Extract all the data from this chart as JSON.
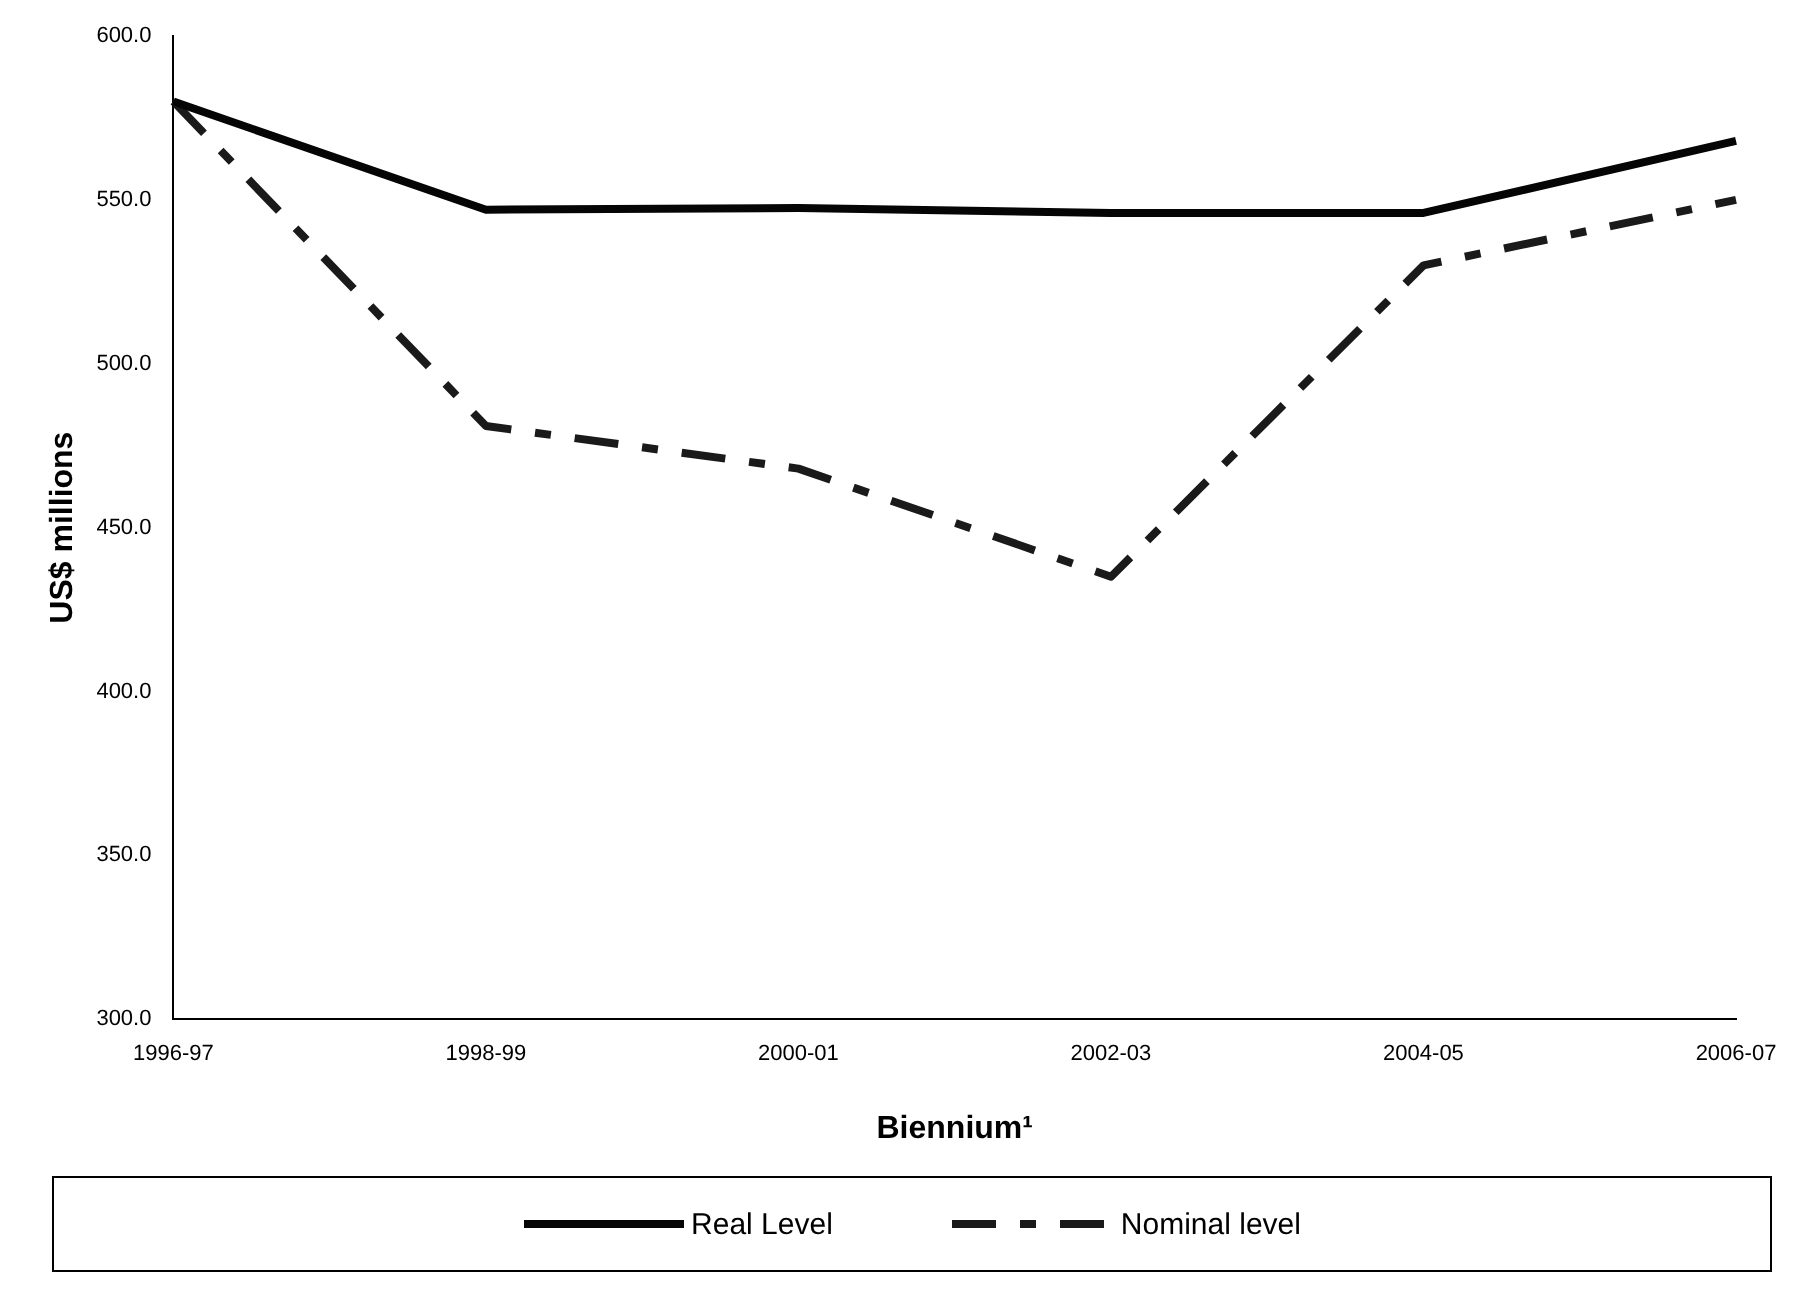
{
  "chart_data": {
    "type": "line",
    "xlabel": "Biennium¹",
    "ylabel": "US$ millions",
    "categories": [
      "1996-97",
      "1998-99",
      "2000-01",
      "2002-03",
      "2004-05",
      "2006-07"
    ],
    "series": [
      {
        "name": "Real Level",
        "color": "#050505",
        "line_style": "solid",
        "values": [
          580,
          547,
          547.5,
          546,
          546,
          568
        ]
      },
      {
        "name": "Nominal level",
        "color": "#1a1a1a",
        "line_style": "dashed",
        "values": [
          580,
          481,
          468,
          435,
          530,
          550
        ]
      }
    ],
    "ylim": [
      300,
      600
    ],
    "yticks": [
      {
        "value": 300,
        "label": "300.0"
      },
      {
        "value": 350,
        "label": "350.0"
      },
      {
        "value": 400,
        "label": "400.0"
      },
      {
        "value": 450,
        "label": "450.0"
      },
      {
        "value": 500,
        "label": "500.0"
      },
      {
        "value": 550,
        "label": "550.0"
      },
      {
        "value": 600,
        "label": "600.0"
      }
    ],
    "grid": false,
    "legend": "bottom",
    "marker": "none"
  }
}
